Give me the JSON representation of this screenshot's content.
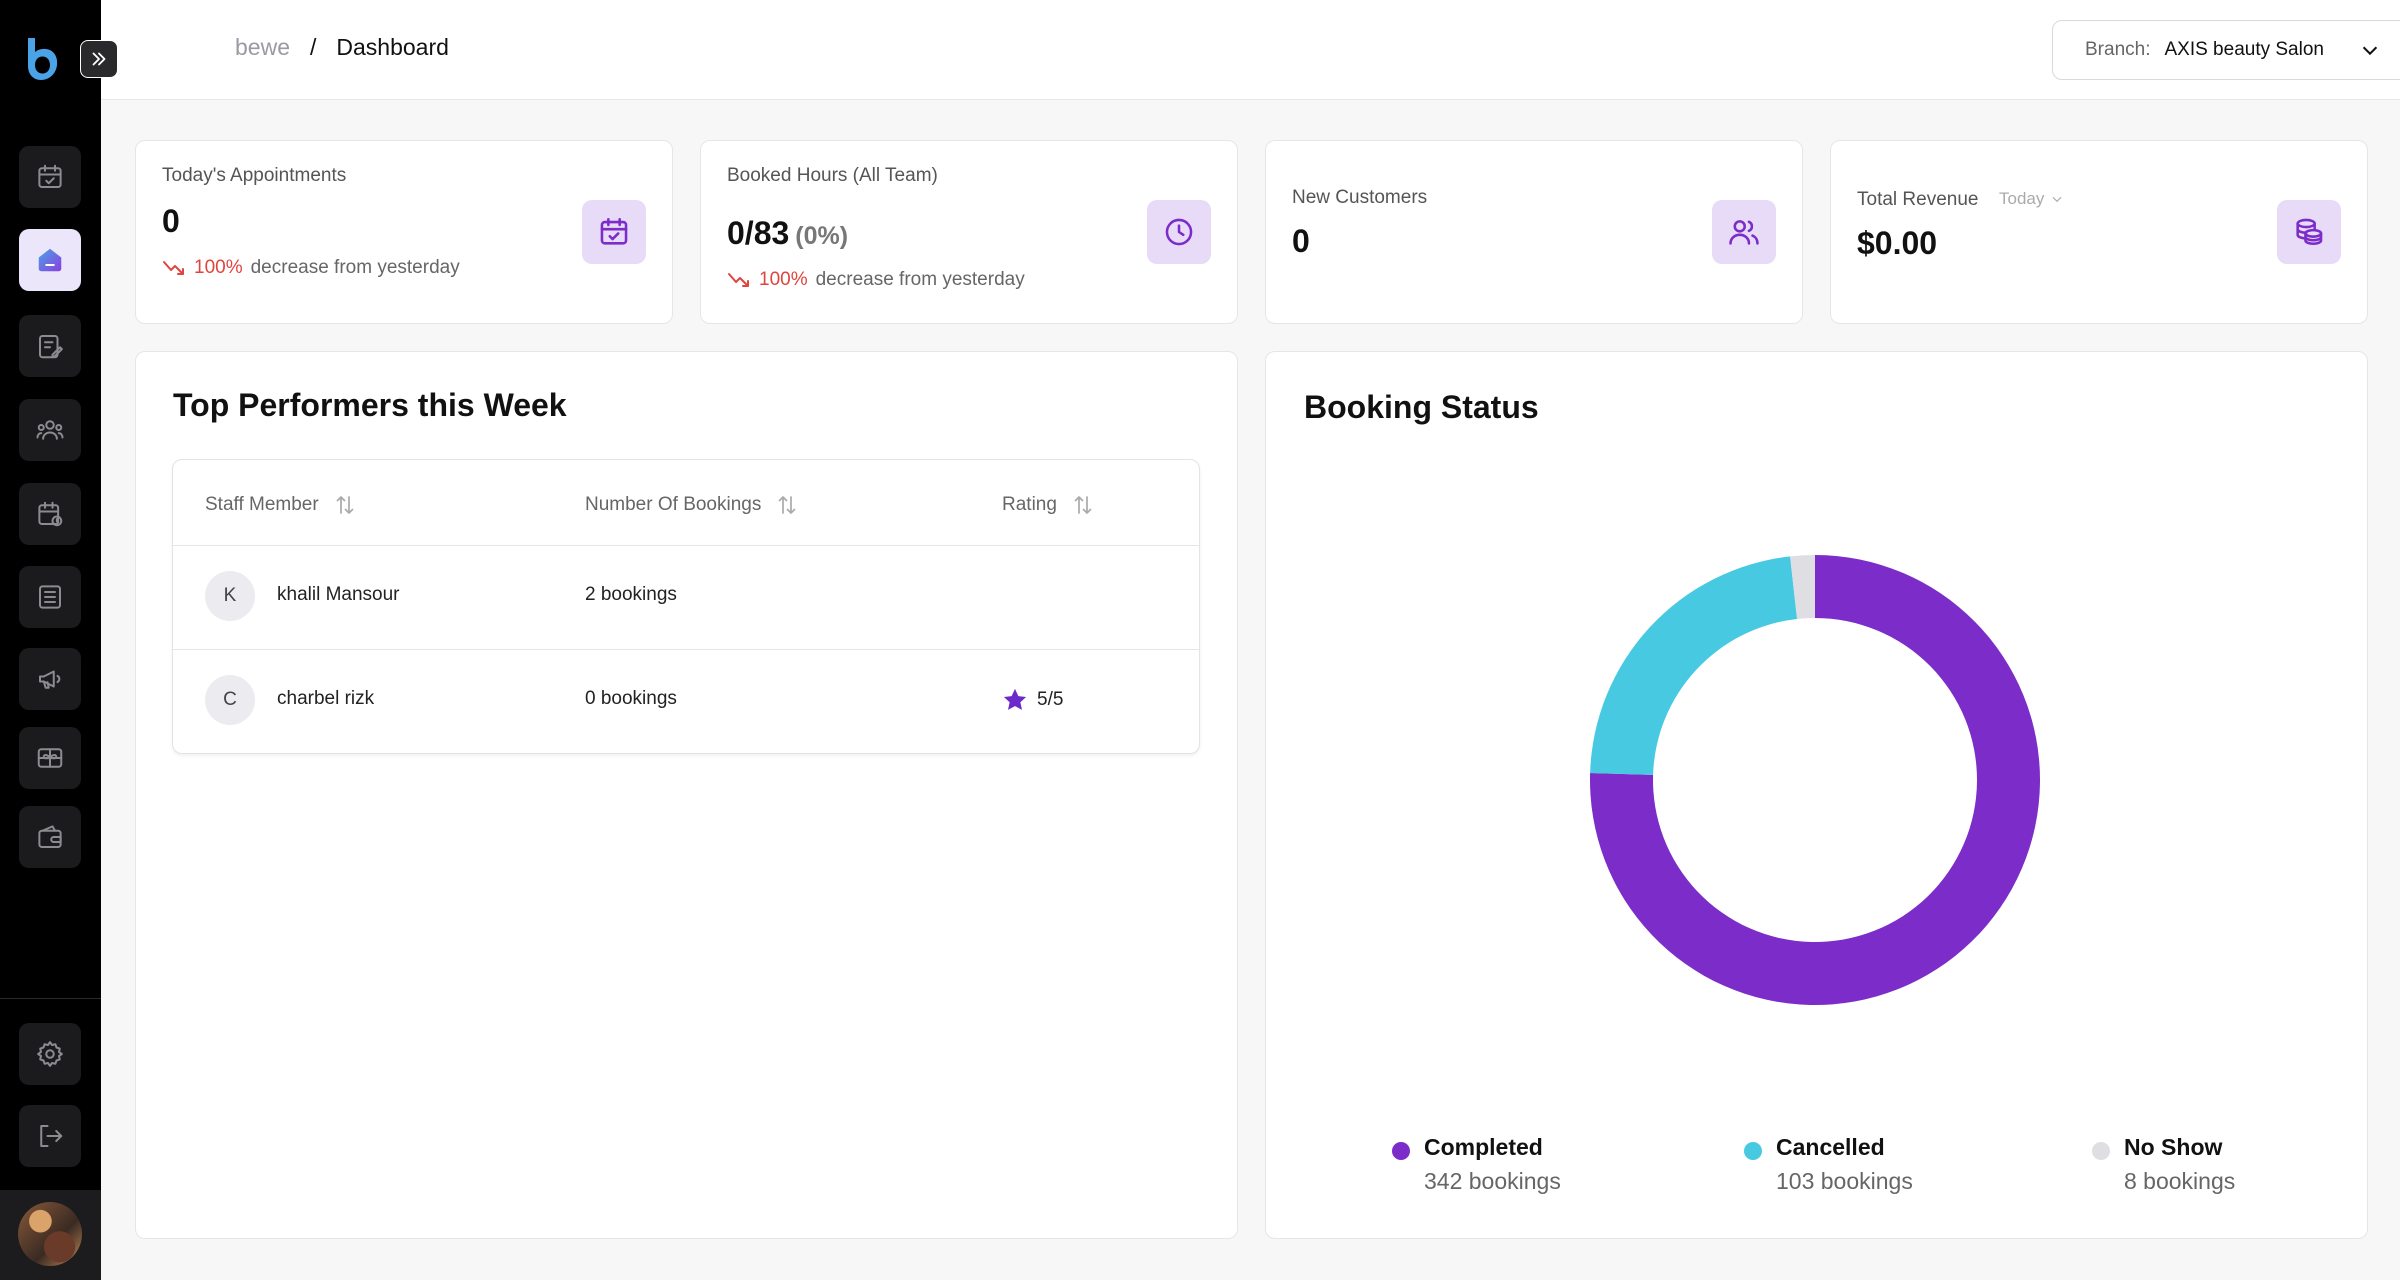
{
  "header": {
    "app_name": "bewe",
    "separator": "/",
    "page": "Dashboard",
    "branch_label": "Branch:",
    "branch_value": "AXIS beauty Salon"
  },
  "stats": [
    {
      "title": "Today's Appointments",
      "value": "0",
      "change_pct": "100%",
      "change_text": "decrease from yesterday",
      "icon": "calendar-check-icon"
    },
    {
      "title": "Booked Hours (All Team)",
      "value": "0/83",
      "value_sub": "(0%)",
      "change_pct": "100%",
      "change_text": "decrease from yesterday",
      "icon": "clock-icon"
    },
    {
      "title": "New Customers",
      "value": "0",
      "icon": "users-icon"
    },
    {
      "title": "Total Revenue",
      "period": "Today",
      "value": "$0.00",
      "icon": "coins-icon"
    }
  ],
  "performers": {
    "title": "Top Performers this Week",
    "columns": [
      "Staff Member",
      "Number Of Bookings",
      "Rating"
    ],
    "rows": [
      {
        "initial": "K",
        "name": "khalil Mansour",
        "bookings": "2 bookings",
        "rating": ""
      },
      {
        "initial": "C",
        "name": "charbel rizk",
        "bookings": "0 bookings",
        "rating": "5/5"
      }
    ]
  },
  "booking_status": {
    "title": "Booking Status",
    "legend": [
      {
        "label": "Completed",
        "count": "342 bookings"
      },
      {
        "label": "Cancelled",
        "count": "103 bookings"
      },
      {
        "label": "No Show",
        "count": "8 bookings"
      }
    ]
  },
  "chart_data": {
    "type": "pie",
    "variant": "donut",
    "title": "Booking Status",
    "categories": [
      "Completed",
      "Cancelled",
      "No Show"
    ],
    "values": [
      342,
      103,
      8
    ],
    "colors": [
      "#7b2cc9",
      "#48c9e2",
      "#dedee3"
    ],
    "legend_position": "bottom"
  },
  "colors": {
    "accent": "#7b2cc9",
    "decrease": "#e0443e"
  },
  "sidebar": {
    "items": [
      "calendar-check-icon",
      "home-icon",
      "clipboard-edit-icon",
      "users-icon",
      "calendar-clock-icon",
      "list-icon",
      "megaphone-icon",
      "gift-card-icon",
      "wallet-icon"
    ],
    "bottom": [
      "gear-icon",
      "logout-icon"
    ]
  }
}
